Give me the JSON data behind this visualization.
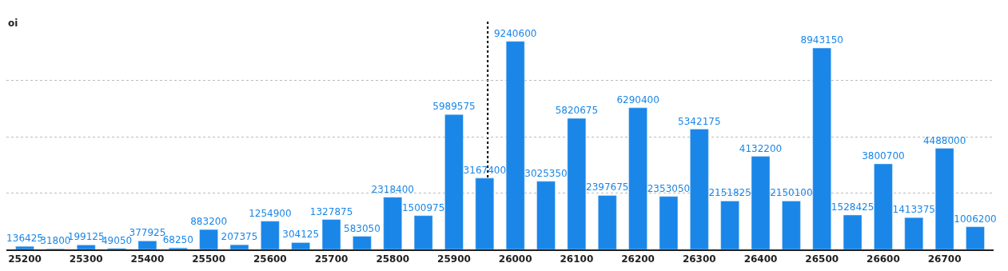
{
  "chart_data": {
    "type": "bar",
    "ylabel": "oi",
    "x": [
      25200,
      25250,
      25300,
      25350,
      25400,
      25450,
      25500,
      25550,
      25600,
      25650,
      25700,
      25750,
      25800,
      25850,
      25900,
      25950,
      26000,
      26050,
      26100,
      26150,
      26200,
      26250,
      26300,
      26350,
      26400,
      26450,
      26500,
      26550,
      26600,
      26650,
      26700,
      26750
    ],
    "values": [
      136425,
      31800,
      199125,
      49050,
      377925,
      68250,
      883200,
      207375,
      1254900,
      304125,
      1327875,
      583050,
      2318400,
      1500975,
      5989575,
      3167400,
      9240600,
      3025350,
      5820675,
      2397675,
      6290400,
      2353050,
      5342175,
      2151825,
      4132200,
      2150100,
      8943150,
      1528425,
      3800700,
      1413375,
      4488000,
      1006200
    ],
    "color": "#1a86e8",
    "data_labels": true,
    "xlim": [
      25170,
      26780
    ],
    "xticks": [
      25200,
      25300,
      25400,
      25500,
      25600,
      25700,
      25800,
      25900,
      26000,
      26100,
      26200,
      26300,
      26400,
      26500,
      26600,
      26700
    ],
    "yticks": [
      {
        "value": 0,
        "label": null
      },
      {
        "value": 2500000,
        "label": null
      },
      {
        "value": 5000000,
        "label": null
      },
      {
        "value": 7500000,
        "label": null
      }
    ],
    "grid": "y",
    "tick_labels": "x",
    "legend": false,
    "ref_lines": [
      {
        "axis": "x",
        "value": 25955,
        "label": null,
        "line_style": "dotted",
        "color": "#000000"
      }
    ]
  }
}
